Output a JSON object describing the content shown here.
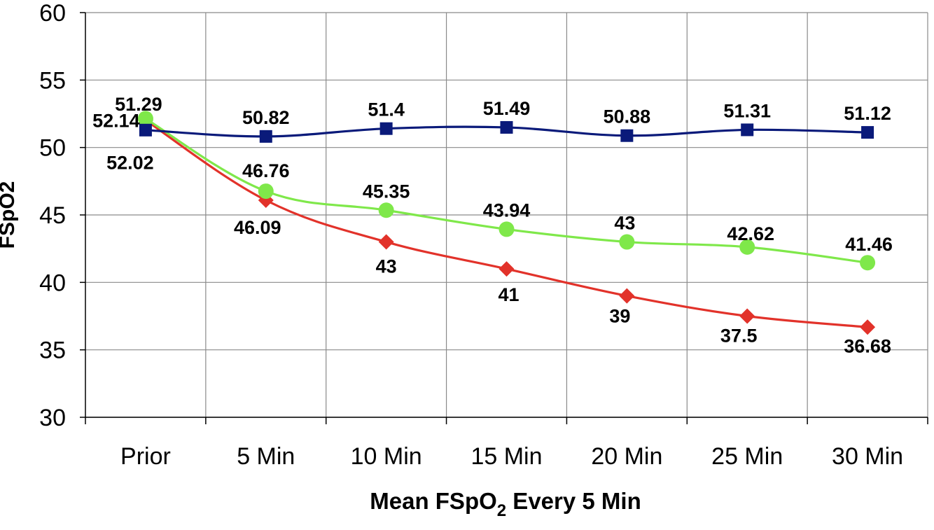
{
  "chart_data": {
    "type": "line",
    "categories": [
      "Prior",
      "5 Min",
      "10 Min",
      "15 Min",
      "20 Min",
      "25 Min",
      "30 Min"
    ],
    "series": [
      {
        "color": "#0a1a7a",
        "marker": "square",
        "values": [
          51.29,
          50.82,
          51.4,
          51.49,
          50.88,
          51.31,
          51.12
        ],
        "labels": [
          "51.29",
          "50.82",
          "51.4",
          "51.49",
          "50.88",
          "51.31",
          "51.12"
        ]
      },
      {
        "color": "#7fe84a",
        "marker": "circle",
        "values": [
          52.14,
          46.76,
          45.35,
          43.94,
          43,
          42.62,
          41.46
        ],
        "labels": [
          "52.14",
          "46.76",
          "45.35",
          "43.94",
          "43",
          "42.62",
          "41.46"
        ]
      },
      {
        "color": "#e2322a",
        "marker": "diamond",
        "values": [
          52.02,
          46.09,
          43,
          41,
          39,
          37.5,
          36.68
        ],
        "labels": [
          "52.02",
          "46.09",
          "43",
          "41",
          "39",
          "37.5",
          "36.68"
        ]
      }
    ],
    "yticks": [
      "30",
      "35",
      "40",
      "45",
      "50",
      "55",
      "60"
    ],
    "ylim": [
      30,
      60
    ],
    "xlabel_main": "Mean FSpO",
    "xlabel_sub": "2",
    "xlabel_tail": " Every 5 Min",
    "ylabel": "FSpO2",
    "grid": true
  }
}
